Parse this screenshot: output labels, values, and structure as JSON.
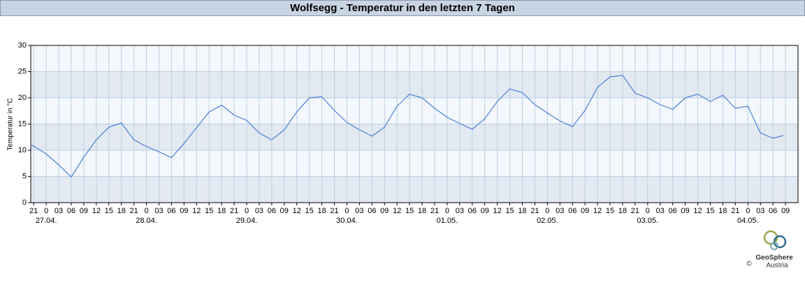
{
  "chart_data": {
    "type": "line",
    "title": "Wolfsegg - Temperatur in den letzten 7 Tagen",
    "y_label": "Temperatur in °C",
    "x": [
      -3.7,
      -3,
      0,
      3,
      6,
      9,
      12,
      15,
      18,
      21,
      24,
      27,
      30,
      33,
      36,
      39,
      42,
      45,
      48,
      51,
      54,
      57,
      60,
      63,
      66,
      69,
      72,
      75,
      78,
      81,
      84,
      87,
      90,
      93,
      96,
      99,
      102,
      105,
      108,
      111,
      114,
      117,
      120,
      123,
      126,
      129,
      132,
      135,
      138,
      141,
      144,
      147,
      150,
      153,
      156,
      159,
      162,
      165,
      168,
      171,
      174,
      176.5
    ],
    "series": [
      {
        "color": "#4a7fd4",
        "values": [
          11.0,
          10.8,
          9.3,
          7.2,
          4.9,
          8.7,
          12,
          14.4,
          15.2,
          12,
          10.7,
          9.7,
          8.6,
          11.3,
          14.3,
          17.3,
          18.6,
          16.7,
          15.7,
          13.3,
          12,
          13.9,
          17.3,
          20,
          20.2,
          17.6,
          15.3,
          13.9,
          12.7,
          14.4,
          18.4,
          20.7,
          20,
          18,
          16.3,
          15.1,
          14,
          16,
          19.3,
          21.7,
          21,
          18.7,
          17.1,
          15.6,
          14.5,
          17.6,
          22,
          24,
          24.3,
          20.9,
          20,
          18.7,
          17.8,
          20,
          20.7,
          19.3,
          20.5,
          18,
          18.4,
          13.3,
          12.3,
          12.8
        ]
      }
    ],
    "xlim": [
      -3.7,
      180
    ],
    "ylim": [
      0,
      30
    ],
    "yticks": [
      0,
      5,
      10,
      15,
      20,
      25,
      30
    ],
    "xticks": [
      {
        "value": -3,
        "label": "21"
      },
      0,
      {
        "value": 3,
        "label": "03"
      },
      {
        "value": 6,
        "label": "06"
      },
      {
        "value": 9,
        "label": "09"
      },
      12,
      15,
      18,
      21,
      {
        "value": 24,
        "label": "0"
      },
      {
        "value": 27,
        "label": "03"
      },
      {
        "value": 30,
        "label": "06"
      },
      {
        "value": 33,
        "label": "09"
      },
      {
        "value": 36,
        "label": "12"
      },
      {
        "value": 39,
        "label": "15"
      },
      {
        "value": 42,
        "label": "18"
      },
      {
        "value": 45,
        "label": "21"
      },
      {
        "value": 48,
        "label": "0"
      },
      {
        "value": 51,
        "label": "03"
      },
      {
        "value": 54,
        "label": "06"
      },
      {
        "value": 57,
        "label": "09"
      },
      {
        "value": 60,
        "label": "12"
      },
      {
        "value": 63,
        "label": "15"
      },
      {
        "value": 66,
        "label": "18"
      },
      {
        "value": 69,
        "label": "21"
      },
      {
        "value": 72,
        "label": "0"
      },
      {
        "value": 75,
        "label": "03"
      },
      {
        "value": 78,
        "label": "06"
      },
      {
        "value": 81,
        "label": "09"
      },
      {
        "value": 84,
        "label": "12"
      },
      {
        "value": 87,
        "label": "15"
      },
      {
        "value": 90,
        "label": "18"
      },
      {
        "value": 93,
        "label": "21"
      },
      {
        "value": 96,
        "label": "0"
      },
      {
        "value": 99,
        "label": "03"
      },
      {
        "value": 102,
        "label": "06"
      },
      {
        "value": 105,
        "label": "09"
      },
      {
        "value": 108,
        "label": "12"
      },
      {
        "value": 111,
        "label": "15"
      },
      {
        "value": 114,
        "label": "18"
      },
      {
        "value": 117,
        "label": "21"
      },
      {
        "value": 120,
        "label": "0"
      },
      {
        "value": 123,
        "label": "03"
      },
      {
        "value": 126,
        "label": "06"
      },
      {
        "value": 129,
        "label": "09"
      },
      {
        "value": 132,
        "label": "12"
      },
      {
        "value": 135,
        "label": "15"
      },
      {
        "value": 138,
        "label": "18"
      },
      {
        "value": 141,
        "label": "21"
      },
      {
        "value": 144,
        "label": "0"
      },
      {
        "value": 147,
        "label": "03"
      },
      {
        "value": 150,
        "label": "06"
      },
      {
        "value": 153,
        "label": "09"
      },
      {
        "value": 156,
        "label": "12"
      },
      {
        "value": 159,
        "label": "15"
      },
      {
        "value": 162,
        "label": "18"
      },
      {
        "value": 165,
        "label": "21"
      },
      {
        "value": 168,
        "label": "0"
      },
      {
        "value": 171,
        "label": "03"
      },
      {
        "value": 174,
        "label": "06"
      },
      {
        "value": 177,
        "label": "09"
      }
    ],
    "date_ticks": [
      {
        "value": 0,
        "label": "27.04."
      },
      {
        "value": 24,
        "label": "28.04."
      },
      {
        "value": 48,
        "label": "29.04."
      },
      {
        "value": 72,
        "label": "30.04."
      },
      {
        "value": 96,
        "label": "01.05."
      },
      {
        "value": 120,
        "label": "02.05."
      },
      {
        "value": 144,
        "label": "03.05."
      },
      {
        "value": 168,
        "label": "04.05."
      }
    ],
    "grid": true
  },
  "logo": {
    "name": "GeoSphere",
    "sub": "Austria",
    "copyright": "©"
  }
}
